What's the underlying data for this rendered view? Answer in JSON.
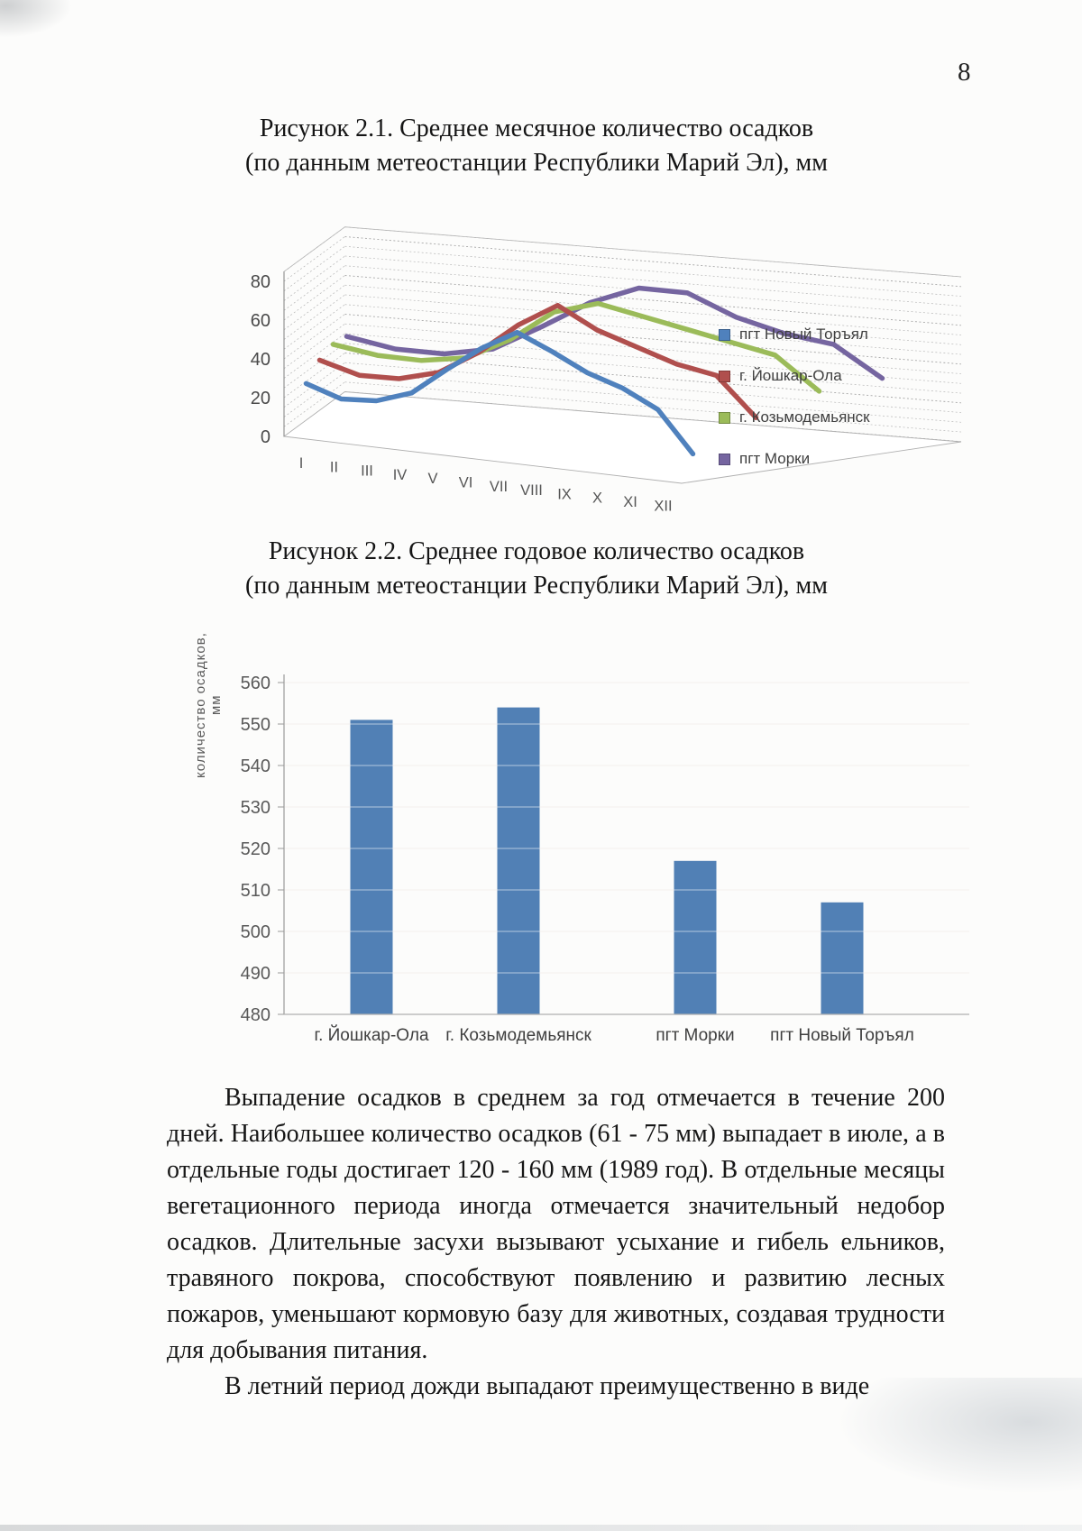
{
  "page_number": "8",
  "figure1": {
    "title_line1": "Рисунок 2.1. Среднее месячное количество осадков",
    "title_line2": "(по данным метеостанции Республики Марий Эл), мм"
  },
  "figure2": {
    "title_line1": "Рисунок 2.2. Среднее годовое количество осадков",
    "title_line2": "(по данным метеостанции Республики Марий Эл), мм"
  },
  "body": {
    "paragraph1": "Выпадение осадков в среднем за год отмечается в течение 200 дней. Наибольшее количество осадков (61 - 75 мм) выпадает в июле, а в отдельные годы достигает 120 - 160 мм (1989 год). В отдельные месяцы вегетационного периода иногда отмечается значительный недобор осадков. Длительные засухи вызывают усыхание и гибель ельников, травяного покрова, способствуют появлению и развитию лесных пожаров, уменьшают кормовую базу для животных, создавая трудности для добывания питания.",
    "paragraph2": "В летний период дожди выпадают преимущественно в виде"
  },
  "chart_data": [
    {
      "type": "line",
      "projection": "3d",
      "title": "Среднее месячное количество осадков, мм",
      "categories": [
        "I",
        "II",
        "III",
        "IV",
        "V",
        "VI",
        "VII",
        "VIII",
        "IX",
        "X",
        "XI",
        "XII"
      ],
      "series": [
        {
          "name": "пгт Новый Торъял",
          "color": "#4f81bd",
          "values": [
            27,
            21,
            22,
            28,
            42,
            55,
            65,
            57,
            48,
            42,
            33,
            12
          ]
        },
        {
          "name": "г. Йошкар-Ола",
          "color": "#b04f4d",
          "values": [
            34,
            28,
            28,
            33,
            45,
            61,
            73,
            62,
            55,
            48,
            44,
            24
          ]
        },
        {
          "name": "г. Козьмодемьянск",
          "color": "#9bbb59",
          "values": [
            37,
            33,
            32,
            35,
            46,
            62,
            68,
            63,
            58,
            53,
            48,
            31
          ]
        },
        {
          "name": "пгт Морки",
          "color": "#7565a0",
          "values": [
            36,
            31,
            30,
            34,
            47,
            61,
            70,
            69,
            58,
            51,
            47,
            31
          ]
        }
      ],
      "ylim": [
        0,
        80
      ],
      "yticks": [
        0,
        20,
        40,
        60,
        80
      ],
      "grid": true,
      "legend_position": "right"
    },
    {
      "type": "bar",
      "title": "Среднее годовое количество осадков, мм",
      "categories": [
        "г. Йошкар-Ола",
        "г. Козьмодемьянск",
        "пгт Морки",
        "пгт Новый Торъял"
      ],
      "values": [
        551,
        554,
        517,
        507
      ],
      "ylabel": "количество осадков, мм",
      "ylim": [
        480,
        560
      ],
      "yticks": [
        480,
        490,
        500,
        510,
        520,
        530,
        540,
        550,
        560
      ],
      "bar_color": "#5180b5",
      "grid": true
    }
  ]
}
